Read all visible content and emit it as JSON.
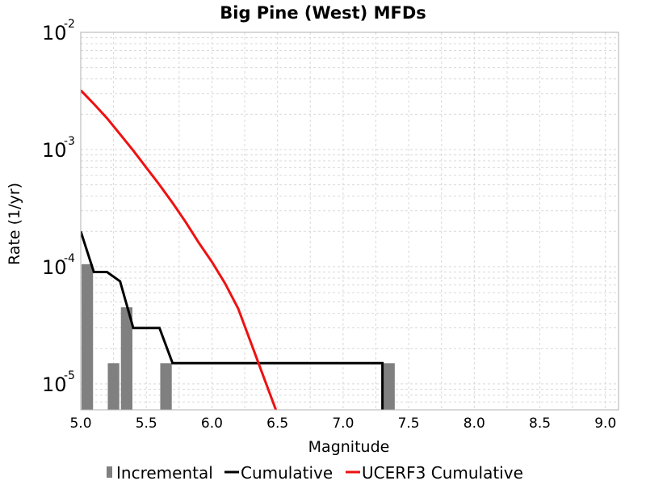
{
  "chart_data": {
    "type": "bar+line",
    "title": "Big Pine (West) MFDs",
    "xlabel": "Magnitude",
    "ylabel": "Rate (1/yr)",
    "xlim": [
      5.0,
      9.1
    ],
    "ylim": [
      6e-06,
      0.01
    ],
    "yscale": "log",
    "grid": true,
    "legend_position": "bottom",
    "xticks": [
      "5.0",
      "5.5",
      "6.0",
      "6.5",
      "7.0",
      "7.5",
      "8.0",
      "8.5",
      "9.0"
    ],
    "yticks": [
      {
        "base": "10",
        "exp": "-2",
        "value": 0.01
      },
      {
        "base": "10",
        "exp": "-3",
        "value": 0.001
      },
      {
        "base": "10",
        "exp": "-4",
        "value": 0.0001
      },
      {
        "base": "10",
        "exp": "-5",
        "value": 1e-05
      }
    ],
    "series": [
      {
        "name": "Incremental",
        "kind": "bar",
        "color": "#808080",
        "bar_width": 0.1,
        "x": [
          5.05,
          5.25,
          5.35,
          5.65,
          7.35
        ],
        "values": [
          0.000105,
          1.5e-05,
          4.5e-05,
          1.5e-05,
          1.5e-05
        ]
      },
      {
        "name": "Cumulative",
        "kind": "line",
        "color": "#000000",
        "x": [
          5.0,
          5.1,
          5.2,
          5.3,
          5.4,
          5.5,
          5.6,
          5.7,
          5.8,
          6.0,
          6.5,
          7.0,
          7.2,
          7.3,
          7.3
        ],
        "values": [
          0.0002,
          9e-05,
          9e-05,
          7.5e-05,
          3e-05,
          3e-05,
          3e-05,
          1.5e-05,
          1.5e-05,
          1.5e-05,
          1.5e-05,
          1.5e-05,
          1.5e-05,
          1.5e-05,
          5e-06
        ]
      },
      {
        "name": "UCERF3 Cumulative",
        "kind": "line",
        "color": "#ee1111",
        "x": [
          5.0,
          5.1,
          5.2,
          5.3,
          5.4,
          5.5,
          5.6,
          5.7,
          5.8,
          5.9,
          6.0,
          6.1,
          6.2,
          6.3,
          6.4,
          6.5,
          6.6
        ],
        "values": [
          0.0032,
          0.00245,
          0.00185,
          0.00135,
          0.00098,
          0.0007,
          0.0005,
          0.00035,
          0.00024,
          0.00016,
          0.00011,
          7.2e-05,
          4.4e-05,
          2.2e-05,
          1.1e-05,
          5.5e-06,
          3.8e-06
        ]
      }
    ]
  }
}
